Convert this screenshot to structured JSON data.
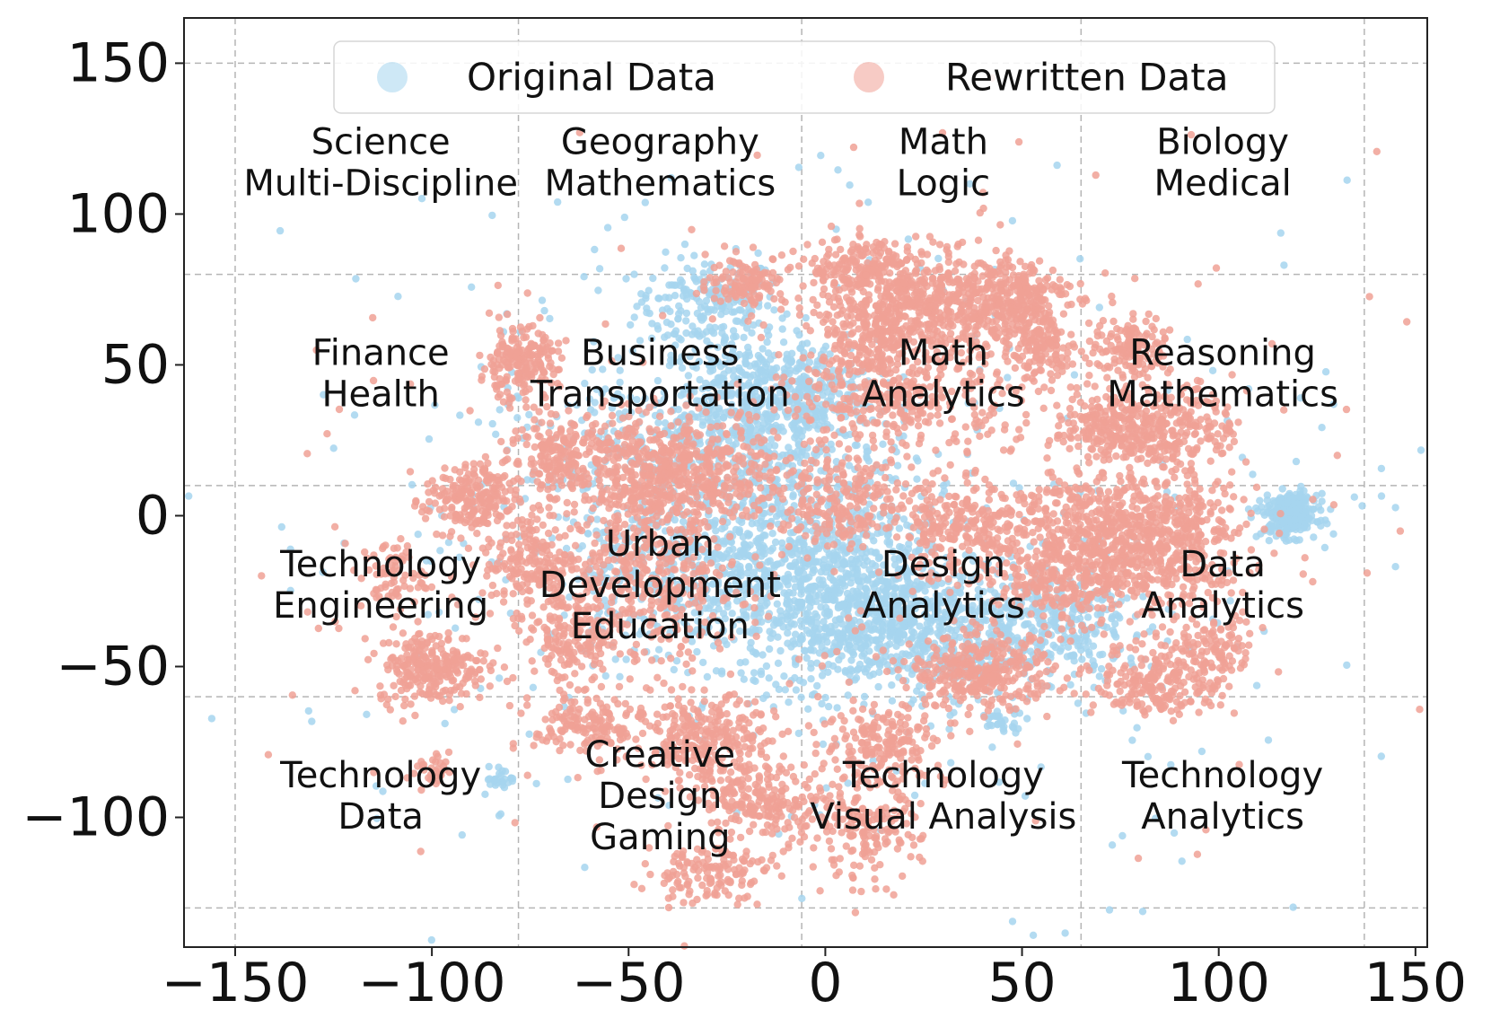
{
  "chart_data": {
    "type": "scatter",
    "title": "",
    "xlabel": "",
    "ylabel": "",
    "xlim": [
      -163,
      153
    ],
    "ylim": [
      -143,
      165
    ],
    "xticks": [
      -150,
      -100,
      -50,
      0,
      50,
      100,
      150
    ],
    "yticks": [
      -100,
      -50,
      0,
      50,
      100,
      150
    ],
    "xtick_labels": [
      "−150",
      "−100",
      "−50",
      "0",
      "50",
      "100",
      "150"
    ],
    "ytick_labels": [
      "−100",
      "−50",
      "0",
      "50",
      "100",
      "150"
    ],
    "grid_x": [
      -150,
      -78,
      -6,
      65,
      137
    ],
    "grid_y": [
      -130,
      -60,
      10,
      80,
      150
    ],
    "grid": true,
    "legend": {
      "placement": "top-center",
      "entries": [
        "Original Data",
        "Rewritten Data"
      ]
    },
    "colors": {
      "original": "#a6d5ee",
      "rewritten": "#f0a195"
    },
    "series": [
      {
        "name": "Original Data",
        "color": "#a6d5ee",
        "clusters": [
          {
            "x": -30,
            "y": 70,
            "sx": 9,
            "sy": 8,
            "n": 200
          },
          {
            "x": -18,
            "y": 38,
            "sx": 12,
            "sy": 10,
            "n": 340
          },
          {
            "x": -5,
            "y": 40,
            "sx": 9,
            "sy": 9,
            "n": 200
          },
          {
            "x": -10,
            "y": -10,
            "sx": 18,
            "sy": 20,
            "n": 700
          },
          {
            "x": 8,
            "y": -30,
            "sx": 14,
            "sy": 14,
            "n": 600
          },
          {
            "x": 30,
            "y": -40,
            "sx": 16,
            "sy": 10,
            "n": 420
          },
          {
            "x": -40,
            "y": -20,
            "sx": 14,
            "sy": 14,
            "n": 280
          },
          {
            "x": 60,
            "y": -35,
            "sx": 12,
            "sy": 10,
            "n": 260
          },
          {
            "x": 118,
            "y": 0,
            "sx": 3.5,
            "sy": 3.5,
            "n": 280
          },
          {
            "x": -82,
            "y": -87,
            "sx": 2,
            "sy": 2,
            "n": 28
          },
          {
            "x": -40,
            "y": 20,
            "sx": 18,
            "sy": 14,
            "n": 300
          },
          {
            "x": 45,
            "y": -68,
            "sx": 3,
            "sy": 2,
            "n": 30
          },
          {
            "x": 0,
            "y": 0,
            "sx": 75,
            "sy": 60,
            "n": 380
          }
        ]
      },
      {
        "name": "Rewritten Data",
        "color": "#f0a195",
        "clusters": [
          {
            "x": -78,
            "y": 50,
            "sx": 5,
            "sy": 6,
            "n": 200
          },
          {
            "x": -68,
            "y": 20,
            "sx": 6,
            "sy": 6,
            "n": 140
          },
          {
            "x": -20,
            "y": 78,
            "sx": 5,
            "sy": 4,
            "n": 120
          },
          {
            "x": 10,
            "y": 82,
            "sx": 7,
            "sy": 5,
            "n": 200
          },
          {
            "x": 30,
            "y": 70,
            "sx": 12,
            "sy": 8,
            "n": 480
          },
          {
            "x": 10,
            "y": 60,
            "sx": 7,
            "sy": 7,
            "n": 200
          },
          {
            "x": 48,
            "y": 72,
            "sx": 7,
            "sy": 7,
            "n": 220
          },
          {
            "x": 20,
            "y": 40,
            "sx": 14,
            "sy": 10,
            "n": 360
          },
          {
            "x": 55,
            "y": 55,
            "sx": 5,
            "sy": 5,
            "n": 120
          },
          {
            "x": 70,
            "y": 30,
            "sx": 6,
            "sy": 5,
            "n": 150
          },
          {
            "x": 88,
            "y": 30,
            "sx": 8,
            "sy": 7,
            "n": 260
          },
          {
            "x": 78,
            "y": 55,
            "sx": 5,
            "sy": 5,
            "n": 140
          },
          {
            "x": -90,
            "y": 5,
            "sx": 6,
            "sy": 6,
            "n": 220
          },
          {
            "x": -75,
            "y": -15,
            "sx": 6,
            "sy": 8,
            "n": 180
          },
          {
            "x": -100,
            "y": -50,
            "sx": 7,
            "sy": 6,
            "n": 260
          },
          {
            "x": -110,
            "y": -20,
            "sx": 4,
            "sy": 6,
            "n": 70
          },
          {
            "x": -50,
            "y": 15,
            "sx": 10,
            "sy": 10,
            "n": 330
          },
          {
            "x": -30,
            "y": 15,
            "sx": 10,
            "sy": 10,
            "n": 300
          },
          {
            "x": -45,
            "y": -20,
            "sx": 12,
            "sy": 16,
            "n": 420
          },
          {
            "x": -65,
            "y": -40,
            "sx": 6,
            "sy": 8,
            "n": 150
          },
          {
            "x": -60,
            "y": -70,
            "sx": 7,
            "sy": 6,
            "n": 160
          },
          {
            "x": -30,
            "y": -75,
            "sx": 8,
            "sy": 7,
            "n": 280
          },
          {
            "x": -15,
            "y": -95,
            "sx": 8,
            "sy": 6,
            "n": 200
          },
          {
            "x": -30,
            "y": -118,
            "sx": 8,
            "sy": 5,
            "n": 140
          },
          {
            "x": 10,
            "y": -105,
            "sx": 7,
            "sy": 8,
            "n": 170
          },
          {
            "x": 15,
            "y": -75,
            "sx": 8,
            "sy": 7,
            "n": 190
          },
          {
            "x": 40,
            "y": -52,
            "sx": 9,
            "sy": 6,
            "n": 320
          },
          {
            "x": 35,
            "y": -5,
            "sx": 10,
            "sy": 8,
            "n": 260
          },
          {
            "x": 5,
            "y": 5,
            "sx": 8,
            "sy": 8,
            "n": 200
          },
          {
            "x": 70,
            "y": -5,
            "sx": 12,
            "sy": 12,
            "n": 520
          },
          {
            "x": 88,
            "y": -10,
            "sx": 10,
            "sy": 12,
            "n": 380
          },
          {
            "x": 60,
            "y": -20,
            "sx": 8,
            "sy": 8,
            "n": 200
          },
          {
            "x": 85,
            "y": -55,
            "sx": 8,
            "sy": 6,
            "n": 220
          },
          {
            "x": 100,
            "y": -45,
            "sx": 5,
            "sy": 5,
            "n": 90
          },
          {
            "x": -100,
            "y": -85,
            "sx": 3,
            "sy": 3,
            "n": 30
          },
          {
            "x": 0,
            "y": 0,
            "sx": 70,
            "sy": 60,
            "n": 300
          }
        ]
      }
    ],
    "annotations": [
      {
        "x": -113,
        "y": 117,
        "lines": [
          "Science",
          "Multi-Discipline"
        ]
      },
      {
        "x": -42,
        "y": 117,
        "lines": [
          "Geography",
          "Mathematics"
        ]
      },
      {
        "x": 30,
        "y": 117,
        "lines": [
          "Math",
          "Logic"
        ]
      },
      {
        "x": 101,
        "y": 117,
        "lines": [
          "Biology",
          "Medical"
        ]
      },
      {
        "x": -113,
        "y": 47,
        "lines": [
          "Finance",
          "Health"
        ]
      },
      {
        "x": -42,
        "y": 47,
        "lines": [
          "Business",
          "Transportation"
        ]
      },
      {
        "x": 30,
        "y": 47,
        "lines": [
          "Math",
          "Analytics"
        ]
      },
      {
        "x": 101,
        "y": 47,
        "lines": [
          "Reasoning",
          "Mathematics"
        ]
      },
      {
        "x": -113,
        "y": -23,
        "lines": [
          "Technology",
          "Engineering"
        ]
      },
      {
        "x": -42,
        "y": -23,
        "lines": [
          "Urban",
          "Development",
          "Education"
        ]
      },
      {
        "x": 30,
        "y": -23,
        "lines": [
          "Design",
          "Analytics"
        ]
      },
      {
        "x": 101,
        "y": -23,
        "lines": [
          "Data",
          "Analytics"
        ]
      },
      {
        "x": -113,
        "y": -93,
        "lines": [
          "Technology",
          "Data"
        ]
      },
      {
        "x": -42,
        "y": -93,
        "lines": [
          "Creative",
          "Design",
          "Gaming"
        ]
      },
      {
        "x": 30,
        "y": -93,
        "lines": [
          "Technology",
          "Visual Analysis"
        ]
      },
      {
        "x": 101,
        "y": -93,
        "lines": [
          "Technology",
          "Analytics"
        ]
      }
    ]
  }
}
